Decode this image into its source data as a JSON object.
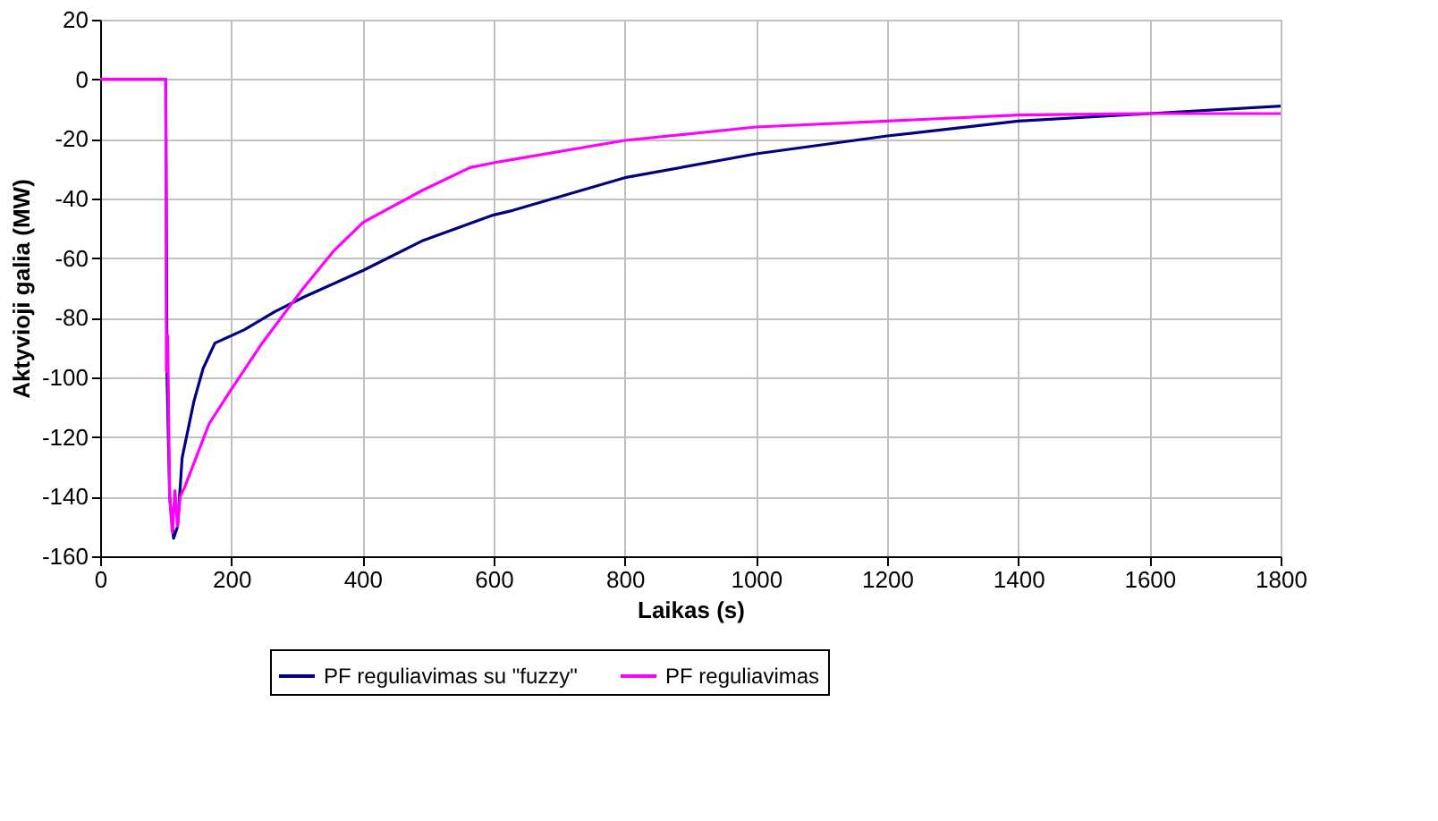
{
  "chart_data": {
    "type": "line",
    "xlabel": "Laikas (s)",
    "ylabel": "Aktyvioji galia (MW)",
    "xlim": [
      0,
      1800
    ],
    "xticks": [
      0,
      200,
      400,
      600,
      800,
      1000,
      1200,
      1400,
      1600,
      1800
    ],
    "ylim": [
      -160,
      20
    ],
    "yticks": [
      -160,
      -140,
      -120,
      -100,
      -80,
      -60,
      -40,
      -20,
      0,
      20
    ],
    "grid": true,
    "legend": "bottom",
    "marker": "none",
    "line_style": "solid",
    "series": [
      {
        "name": "PF reguliavimas su \"fuzzy\"",
        "color": "#000080",
        "x": [
          0,
          100,
          102,
          106,
          112,
          118,
          125,
          143,
          157,
          175,
          220,
          266,
          311,
          402,
          493,
          600,
          629,
          800,
          1000,
          1200,
          1400,
          1600,
          1800
        ],
        "values": [
          0,
          0,
          -100,
          -140,
          -154,
          -150,
          -127,
          -108,
          -97,
          -88.5,
          -84,
          -78,
          -73,
          -64,
          -54,
          -45.5,
          -44,
          -33,
          -25,
          -19,
          -14,
          -11.5,
          -9
        ]
      },
      {
        "name": "PF reguliavimas",
        "color": "#ff00ff",
        "x": [
          0,
          100,
          101,
          103,
          106,
          110,
          114,
          118,
          122,
          129,
          166,
          200,
          247,
          310,
          356,
          401,
          491,
          564,
          600,
          627,
          800,
          1000,
          1200,
          1400,
          1600,
          1800
        ],
        "values": [
          0,
          0,
          -98,
          -86,
          -140,
          -152,
          -138,
          -150,
          -140,
          -136.8,
          -115.6,
          -104,
          -88.5,
          -70,
          -57.6,
          -48,
          -37.3,
          -29.6,
          -28,
          -27,
          -20.5,
          -16,
          -14,
          -12,
          -11.5,
          -11.5
        ]
      }
    ]
  }
}
